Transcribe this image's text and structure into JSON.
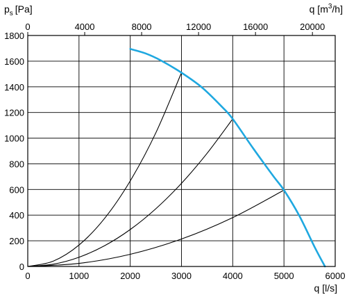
{
  "chart_data": {
    "type": "line",
    "ylabel": "p",
    "ylabel_subscript": "s",
    "ylabel_unit": "[Pa]",
    "xlabel": "q [l/s]",
    "x2label_prefix": "q [m",
    "x2label_sup": "3",
    "x2label_suffix": "/h]",
    "xlim": [
      0,
      6000
    ],
    "ylim": [
      0,
      1800
    ],
    "x_ticks": [
      0,
      1000,
      2000,
      3000,
      4000,
      5000,
      6000
    ],
    "x_tick_labels": [
      "0",
      "1000",
      "2000",
      "3000",
      "4000",
      "5000",
      "6000"
    ],
    "y_ticks": [
      0,
      200,
      400,
      600,
      800,
      1000,
      1200,
      1400,
      1600,
      1800
    ],
    "y_tick_labels": [
      "0",
      "200",
      "400",
      "600",
      "800",
      "1000",
      "1200",
      "1400",
      "1600",
      "1800"
    ],
    "x2_ticks_m3h": [
      0,
      4000,
      8000,
      12000,
      16000,
      20000
    ],
    "x2_tick_labels": [
      "0",
      "4000",
      "8000",
      "12000",
      "16000",
      "20000"
    ],
    "grid": true,
    "series": [
      {
        "color": "#1fa8e0",
        "x": [
          2000,
          2300,
          2600,
          3000,
          3400,
          3800,
          4000,
          4400,
          4800,
          5000,
          5300,
          5600,
          5800
        ],
        "y": [
          1695,
          1660,
          1605,
          1510,
          1395,
          1240,
          1150,
          920,
          700,
          595,
          395,
          150,
          0
        ]
      },
      {
        "color": "#000000",
        "x": [
          0,
          500,
          1000,
          1500,
          2000,
          2500,
          3000
        ],
        "y": [
          0,
          42,
          167,
          375,
          667,
          1042,
          1510
        ]
      },
      {
        "color": "#000000",
        "x": [
          0,
          500,
          1000,
          1500,
          2000,
          2500,
          3000,
          3500,
          4000
        ],
        "y": [
          0,
          18,
          72,
          162,
          288,
          450,
          648,
          882,
          1150
        ]
      },
      {
        "color": "#000000",
        "x": [
          0,
          1000,
          2000,
          3000,
          4000,
          5000
        ],
        "y": [
          0,
          24,
          95,
          214,
          381,
          595
        ]
      }
    ]
  }
}
